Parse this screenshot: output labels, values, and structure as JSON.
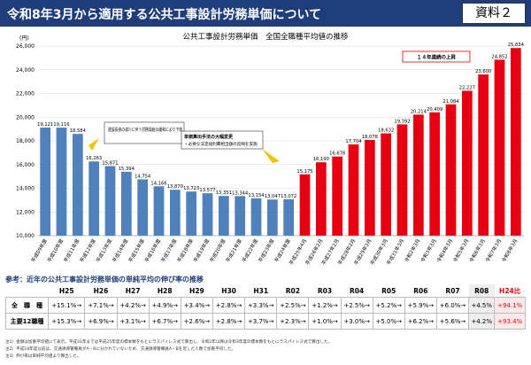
{
  "header": {
    "title": "令和8年3月から適用する公共工事設計労務単価について",
    "badge": "資料２"
  },
  "chart_data": {
    "type": "bar",
    "title": "公共工事設計労務単価　全国全職種平均値の推移",
    "unit": "(円)",
    "categories": [
      "平成09年度",
      "平成10年度",
      "平成11年度",
      "平成12年度",
      "平成13年度",
      "平成14年度",
      "平成15年度",
      "平成16年度",
      "平成17年度",
      "平成18年度",
      "平成19年度",
      "平成20年度",
      "平成21年度",
      "平成22年度",
      "平成23年度",
      "平成24年度",
      "平成25年4月",
      "平成26年2月",
      "平成27年2月",
      "平成28年2月",
      "平成29年3月",
      "平成30年3月",
      "平成31年3月",
      "令和2年3月",
      "令和3年3月",
      "令和4年3月",
      "令和5年3月",
      "令和6年3月",
      "令和7年3月",
      "令和8年3月"
    ],
    "values": [
      19121,
      19116,
      18584,
      16263,
      15871,
      15394,
      14754,
      14166,
      13870,
      13723,
      13577,
      13351,
      13344,
      13154,
      13047,
      13072,
      15175,
      16190,
      16678,
      17704,
      18078,
      18632,
      19392,
      20214,
      20409,
      21084,
      22227,
      23600,
      24852,
      25834
    ],
    "value_labels": [
      "19,121",
      "19,116",
      "18,584",
      "16,263",
      "15,871",
      "15,394",
      "14,754",
      "14,166",
      "13,870",
      "13,723",
      "13,577",
      "13,351",
      "13,344",
      "13,154",
      "13,047",
      "13,072",
      "15,175",
      "16,190",
      "16,678",
      "17,704",
      "18,078",
      "18,632",
      "19,392",
      "20,214",
      "20,409",
      "21,084",
      "22,227",
      "23,600",
      "24,852",
      "25,834"
    ],
    "colors": [
      "#4f81bd",
      "#4f81bd",
      "#4f81bd",
      "#4f81bd",
      "#4f81bd",
      "#4f81bd",
      "#4f81bd",
      "#4f81bd",
      "#4f81bd",
      "#4f81bd",
      "#4f81bd",
      "#4f81bd",
      "#4f81bd",
      "#4f81bd",
      "#4f81bd",
      "#4f81bd",
      "#e60012",
      "#e60012",
      "#e60012",
      "#e60012",
      "#e60012",
      "#e60012",
      "#e60012",
      "#e60012",
      "#e60012",
      "#e60012",
      "#e60012",
      "#e60012",
      "#e60012",
      "#e60012"
    ],
    "ylim": [
      10000,
      26000
    ],
    "yticks": [
      {
        "value": 10000,
        "label": "10,000"
      },
      {
        "value": 12000,
        "label": "12,000"
      },
      {
        "value": 14000,
        "label": "14,000"
      },
      {
        "value": 16000,
        "label": "16,000"
      },
      {
        "value": 18000,
        "label": "18,000"
      },
      {
        "value": 20000,
        "label": "20,000"
      },
      {
        "value": 22000,
        "label": "22,000"
      },
      {
        "value": 24000,
        "label": "24,000"
      },
      {
        "value": 26000,
        "label": "26,000"
      }
    ],
    "grid": true,
    "annotations": [
      "建設投資の減少に伴う労務需給の緩和により下落",
      "単価算出手法の大幅変更",
      "・必要な法定福利費相当額の反映を実施",
      "１４年連続の上昇"
    ]
  },
  "table": {
    "title": "参考：近年の公共工事設計労務単価の単純平均の伸び率の推移",
    "header": [
      "H25",
      "H26",
      "H27",
      "H28",
      "H29",
      "H30",
      "H31",
      "R02",
      "R03",
      "R04",
      "R05",
      "R06",
      "R07",
      "R08",
      "H24比"
    ],
    "rows": [
      {
        "label": "全　職　種",
        "cells": [
          "+15.1%→",
          "+7.1%→",
          "+4.2%→",
          "+4.9%→",
          "+3.4%→",
          "+2.8%→",
          "+3.3%→",
          "+2.5%→",
          "+1.2%→",
          "+2.5%→",
          "+5.2%→",
          "+5.9%→",
          "+6.0%→",
          "+4.5%",
          "+94.1%"
        ]
      },
      {
        "label": "主要12職種",
        "cells": [
          "+15.3%→",
          "+6.9%→",
          "+3.1%→",
          "+6.7%→",
          "+2.6%→",
          "+2.8%→",
          "+3.7%→",
          "+2.3%→",
          "+1.0%→",
          "+3.0%→",
          "+5.0%→",
          "+6.2%→",
          "+5.6%→",
          "+4.2%",
          "+93.4%"
        ]
      }
    ]
  },
  "notes": [
    "注1）金額は加重平均値にて表示。平成31年までは平成25年度の標本数をもとにラスパイレス式で算出し、令和2年以降は令和3年度の標本数をもとにラスパイレス式で算出した。",
    "注2）平成18年度以前は、交通誘導警備員がA・Bに分かれていないため、交通誘導警備員A・Bを足した人数で加重平均した。",
    "注3）伸び率は単純平均値より算出した。"
  ]
}
